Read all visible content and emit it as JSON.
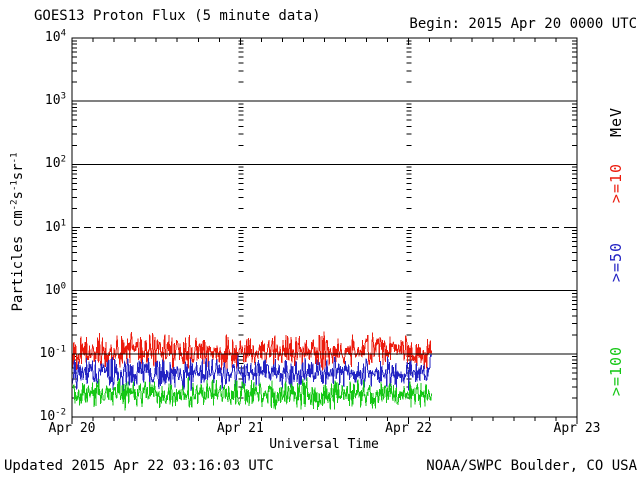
{
  "header": {
    "title": "GOES13 Proton Flux (5 minute data)",
    "begin_label": "Begin: 2015 Apr 20 0000 UTC"
  },
  "footer": {
    "updated": "Updated 2015 Apr 22 03:16:03 UTC",
    "source": "NOAA/SWPC Boulder, CO USA"
  },
  "chart_data": {
    "type": "line",
    "title": "GOES13 Proton Flux (5 minute data)",
    "begin": "2015 Apr 20 0000 UTC",
    "updated": "2015 Apr 22 03:16:03 UTC",
    "x_axis": {
      "label": "Universal Time",
      "tick_labels": [
        "Apr 20",
        "Apr 21",
        "Apr 22",
        "Apr 23"
      ],
      "range_days": 3,
      "minor_tick_hours": 3
    },
    "y_axis": {
      "label": "Particles cm^{-2}s^{-1}sr^{-1}",
      "unit_label": "MeV",
      "scale": "log",
      "min_exp": -2,
      "max_exp": 4,
      "tick_exponents": [
        4,
        3,
        2,
        1,
        0,
        -1,
        -2
      ]
    },
    "hlines": [
      {
        "exp": 3,
        "style": "solid"
      },
      {
        "exp": 2,
        "style": "solid"
      },
      {
        "exp": 1,
        "style": "dashed"
      },
      {
        "exp": 0,
        "style": "solid"
      },
      {
        "exp": -1,
        "style": "solid"
      }
    ],
    "vline_days": [
      1,
      2
    ],
    "grid": "horizontal-log-decades",
    "legend_position": "right-margin-rotated",
    "data_start_days": 0,
    "data_end_days": 2.135,
    "samples_per_day": 288,
    "series": [
      {
        "name": ">=10",
        "energy_mev": ">=10 MeV",
        "color": "#ec1b0d",
        "median_flux": 0.11,
        "flux_range": [
          0.05,
          0.25
        ],
        "gen": {
          "seed": 17,
          "base_log10": -0.97,
          "spread_log10": 0.33,
          "spike_prob": 0.05,
          "spike_log10": 0.2
        }
      },
      {
        "name": ">=50",
        "energy_mev": ">=50 MeV",
        "color": "#2323c3",
        "median_flux": 0.05,
        "flux_range": [
          0.025,
          0.12
        ],
        "gen": {
          "seed": 29,
          "base_log10": -1.31,
          "spread_log10": 0.3,
          "spike_prob": 0.04,
          "spike_log10": 0.15
        }
      },
      {
        "name": ">=100",
        "energy_mev": ">=100 MeV",
        "color": "#15c715",
        "median_flux": 0.024,
        "flux_range": [
          0.012,
          0.06
        ],
        "gen": {
          "seed": 41,
          "base_log10": -1.64,
          "spread_log10": 0.28,
          "spike_prob": 0.04,
          "spike_log10": 0.12,
          "min_log10": -1.95
        }
      }
    ]
  }
}
